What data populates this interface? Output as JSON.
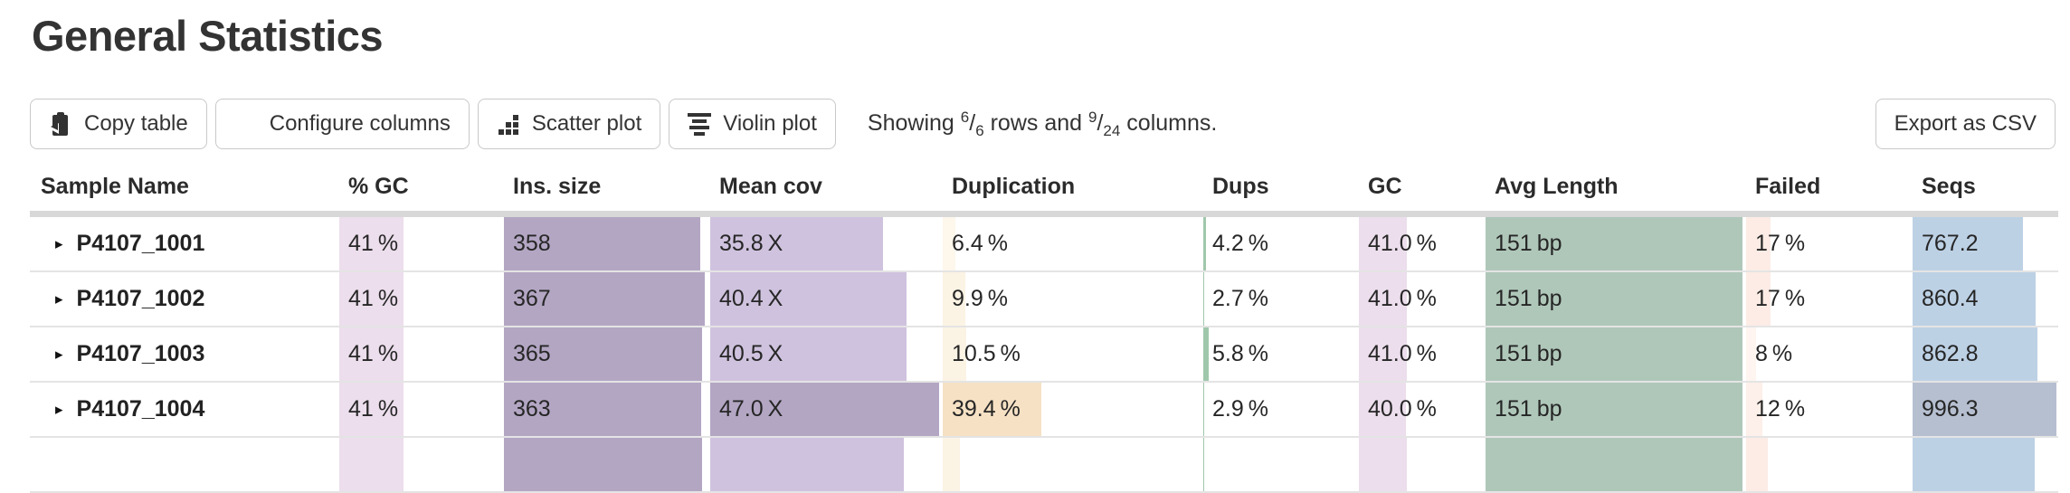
{
  "page": {
    "title": "General Statistics"
  },
  "toolbar": {
    "buttons": [
      {
        "label": "Copy table",
        "icon": "copy-icon"
      },
      {
        "label": "Configure columns",
        "icon": "grid-icon"
      },
      {
        "label": "Scatter plot",
        "icon": "scatter-icon"
      },
      {
        "label": "Violin plot",
        "icon": "violin-icon"
      }
    ],
    "showing": {
      "t1": "Showing ",
      "rows_num": "6",
      "sep1": "/",
      "rows_den": "6",
      "t2": " rows and ",
      "cols_num": "9",
      "sep2": "/",
      "cols_den": "24",
      "t3": " columns."
    },
    "export_label": "Export as CSV"
  },
  "icons": {
    "expand": "▸"
  },
  "table": {
    "columns": [
      "Sample Name",
      "% GC",
      "Ins. size",
      "Mean cov",
      "Duplication",
      "Dups",
      "GC",
      "Avg Length",
      "Failed",
      "Seqs"
    ],
    "rows": [
      {
        "sample": "P4107_1001",
        "cells": [
          {
            "text": "41 %",
            "pct": 41,
            "color": "#ecdeec"
          },
          {
            "text": "358",
            "pct": 97,
            "color": "#b3a6c3"
          },
          {
            "text": "35.8 X",
            "pct": 76,
            "color": "#cfc2de"
          },
          {
            "text": "6.4 %",
            "pct": 6.4,
            "color": "#fdf7ec"
          },
          {
            "text": "4.2 %",
            "pct": 4.2,
            "color": "#a0c7ab"
          },
          {
            "text": "41.0 %",
            "pct": 41,
            "color": "#ecdeec"
          },
          {
            "text": "151 bp",
            "pct": 100,
            "color": "#afc7b9"
          },
          {
            "text": "17 %",
            "pct": 17,
            "color": "#fcece5"
          },
          {
            "text": "767.2",
            "pct": 77,
            "color": "#bdd1e5"
          }
        ]
      },
      {
        "sample": "P4107_1002",
        "cells": [
          {
            "text": "41 %",
            "pct": 41,
            "color": "#ecdeec"
          },
          {
            "text": "367",
            "pct": 99,
            "color": "#b3a6c3"
          },
          {
            "text": "40.4 X",
            "pct": 86,
            "color": "#cfc2de"
          },
          {
            "text": "9.9 %",
            "pct": 9.9,
            "color": "#fbf3e4"
          },
          {
            "text": "2.7 %",
            "pct": 2.7,
            "color": "#a0c7ab"
          },
          {
            "text": "41.0 %",
            "pct": 41,
            "color": "#ecdeec"
          },
          {
            "text": "151 bp",
            "pct": 100,
            "color": "#afc7b9"
          },
          {
            "text": "17 %",
            "pct": 17,
            "color": "#fcece5"
          },
          {
            "text": "860.4",
            "pct": 86,
            "color": "#bdd1e5"
          }
        ]
      },
      {
        "sample": "P4107_1003",
        "cells": [
          {
            "text": "41 %",
            "pct": 41,
            "color": "#ecdeec"
          },
          {
            "text": "365",
            "pct": 98,
            "color": "#b3a6c3"
          },
          {
            "text": "40.5 X",
            "pct": 86,
            "color": "#cfc2de"
          },
          {
            "text": "10.5 %",
            "pct": 10.5,
            "color": "#fbf3e4"
          },
          {
            "text": "5.8 %",
            "pct": 5.8,
            "color": "#a0c7ab"
          },
          {
            "text": "41.0 %",
            "pct": 41,
            "color": "#ecdeec"
          },
          {
            "text": "151 bp",
            "pct": 100,
            "color": "#afc7b9"
          },
          {
            "text": "8 %",
            "pct": 8,
            "color": "#fef5f0"
          },
          {
            "text": "862.8",
            "pct": 87,
            "color": "#bdd1e5"
          }
        ]
      },
      {
        "sample": "P4107_1004",
        "cells": [
          {
            "text": "41 %",
            "pct": 41,
            "color": "#ecdeec"
          },
          {
            "text": "363",
            "pct": 97.5,
            "color": "#b3a6c3"
          },
          {
            "text": "47.0 X",
            "pct": 100,
            "color": "#b3a6c3"
          },
          {
            "text": "39.4 %",
            "pct": 39.4,
            "color": "#f6e1c5"
          },
          {
            "text": "2.9 %",
            "pct": 2.9,
            "color": "#a0c7ab"
          },
          {
            "text": "40.0 %",
            "pct": 40,
            "color": "#ecdeec"
          },
          {
            "text": "151 bp",
            "pct": 100,
            "color": "#afc7b9"
          },
          {
            "text": "12 %",
            "pct": 12,
            "color": "#fdefe9"
          },
          {
            "text": "996.3",
            "pct": 100,
            "color": "#b6bfd0"
          }
        ]
      }
    ],
    "partial_row": {
      "cells": [
        {
          "text": "",
          "pct": 41,
          "color": "#ecdeec"
        },
        {
          "text": "",
          "pct": 98,
          "color": "#b3a6c3"
        },
        {
          "text": "",
          "pct": 85,
          "color": "#cfc2de"
        },
        {
          "text": "",
          "pct": 8,
          "color": "#fbf3e4"
        },
        {
          "text": "",
          "pct": 3,
          "color": "#a0c7ab"
        },
        {
          "text": "",
          "pct": 41,
          "color": "#ecdeec"
        },
        {
          "text": "",
          "pct": 100,
          "color": "#afc7b9"
        },
        {
          "text": "",
          "pct": 15,
          "color": "#fcece5"
        },
        {
          "text": "",
          "pct": 85,
          "color": "#bdd1e5"
        }
      ]
    }
  }
}
